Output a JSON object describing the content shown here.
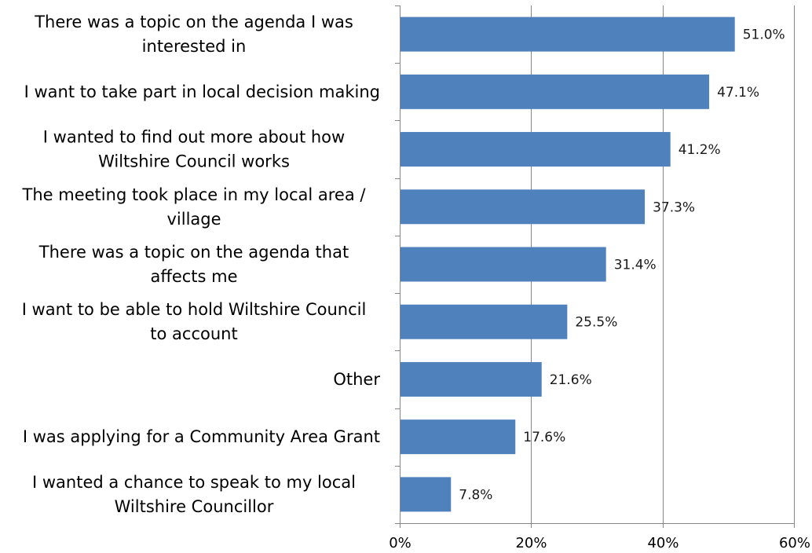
{
  "chart_data": {
    "type": "bar",
    "orientation": "horizontal",
    "categories": [
      "There was a topic on the agenda I was interested in",
      "I want to take part in local decision making",
      "I wanted to find out more about how Wiltshire Council works",
      "The meeting took place in my local area / village",
      "There was a topic on the agenda that affects me",
      "I want to be able to hold Wiltshire Council to account",
      "Other",
      "I was applying for a Community Area Grant",
      "I wanted a chance to speak to my local Wiltshire Councillor"
    ],
    "category_label_lines": [
      [
        "There was a topic on the agenda I was",
        "interested in"
      ],
      [
        "I want to take part in local decision making"
      ],
      [
        "I wanted to find out more about how",
        "Wiltshire Council works"
      ],
      [
        "The meeting took place in my local area /",
        "village"
      ],
      [
        "There was a topic on the agenda that",
        "affects me"
      ],
      [
        "I want to be able to hold Wiltshire Council",
        "to account"
      ],
      [
        "Other"
      ],
      [
        "I was applying for a Community Area Grant"
      ],
      [
        "I wanted a chance to speak to my local",
        "Wiltshire Councillor"
      ]
    ],
    "values": [
      51.0,
      47.1,
      41.2,
      37.3,
      31.4,
      25.5,
      21.6,
      17.6,
      7.8
    ],
    "data_labels": [
      "51.0%",
      "47.1%",
      "41.2%",
      "37.3%",
      "31.4%",
      "25.5%",
      "21.6%",
      "17.6%",
      "7.8%"
    ],
    "xlim": [
      0,
      60
    ],
    "x_ticks": [
      0,
      20,
      40,
      60
    ],
    "x_tick_labels": [
      "0%",
      "20%",
      "40%",
      "60%"
    ],
    "grid": true,
    "bar_color": "#4f81bd",
    "grid_color": "#868686",
    "axis_color": "#868686"
  }
}
